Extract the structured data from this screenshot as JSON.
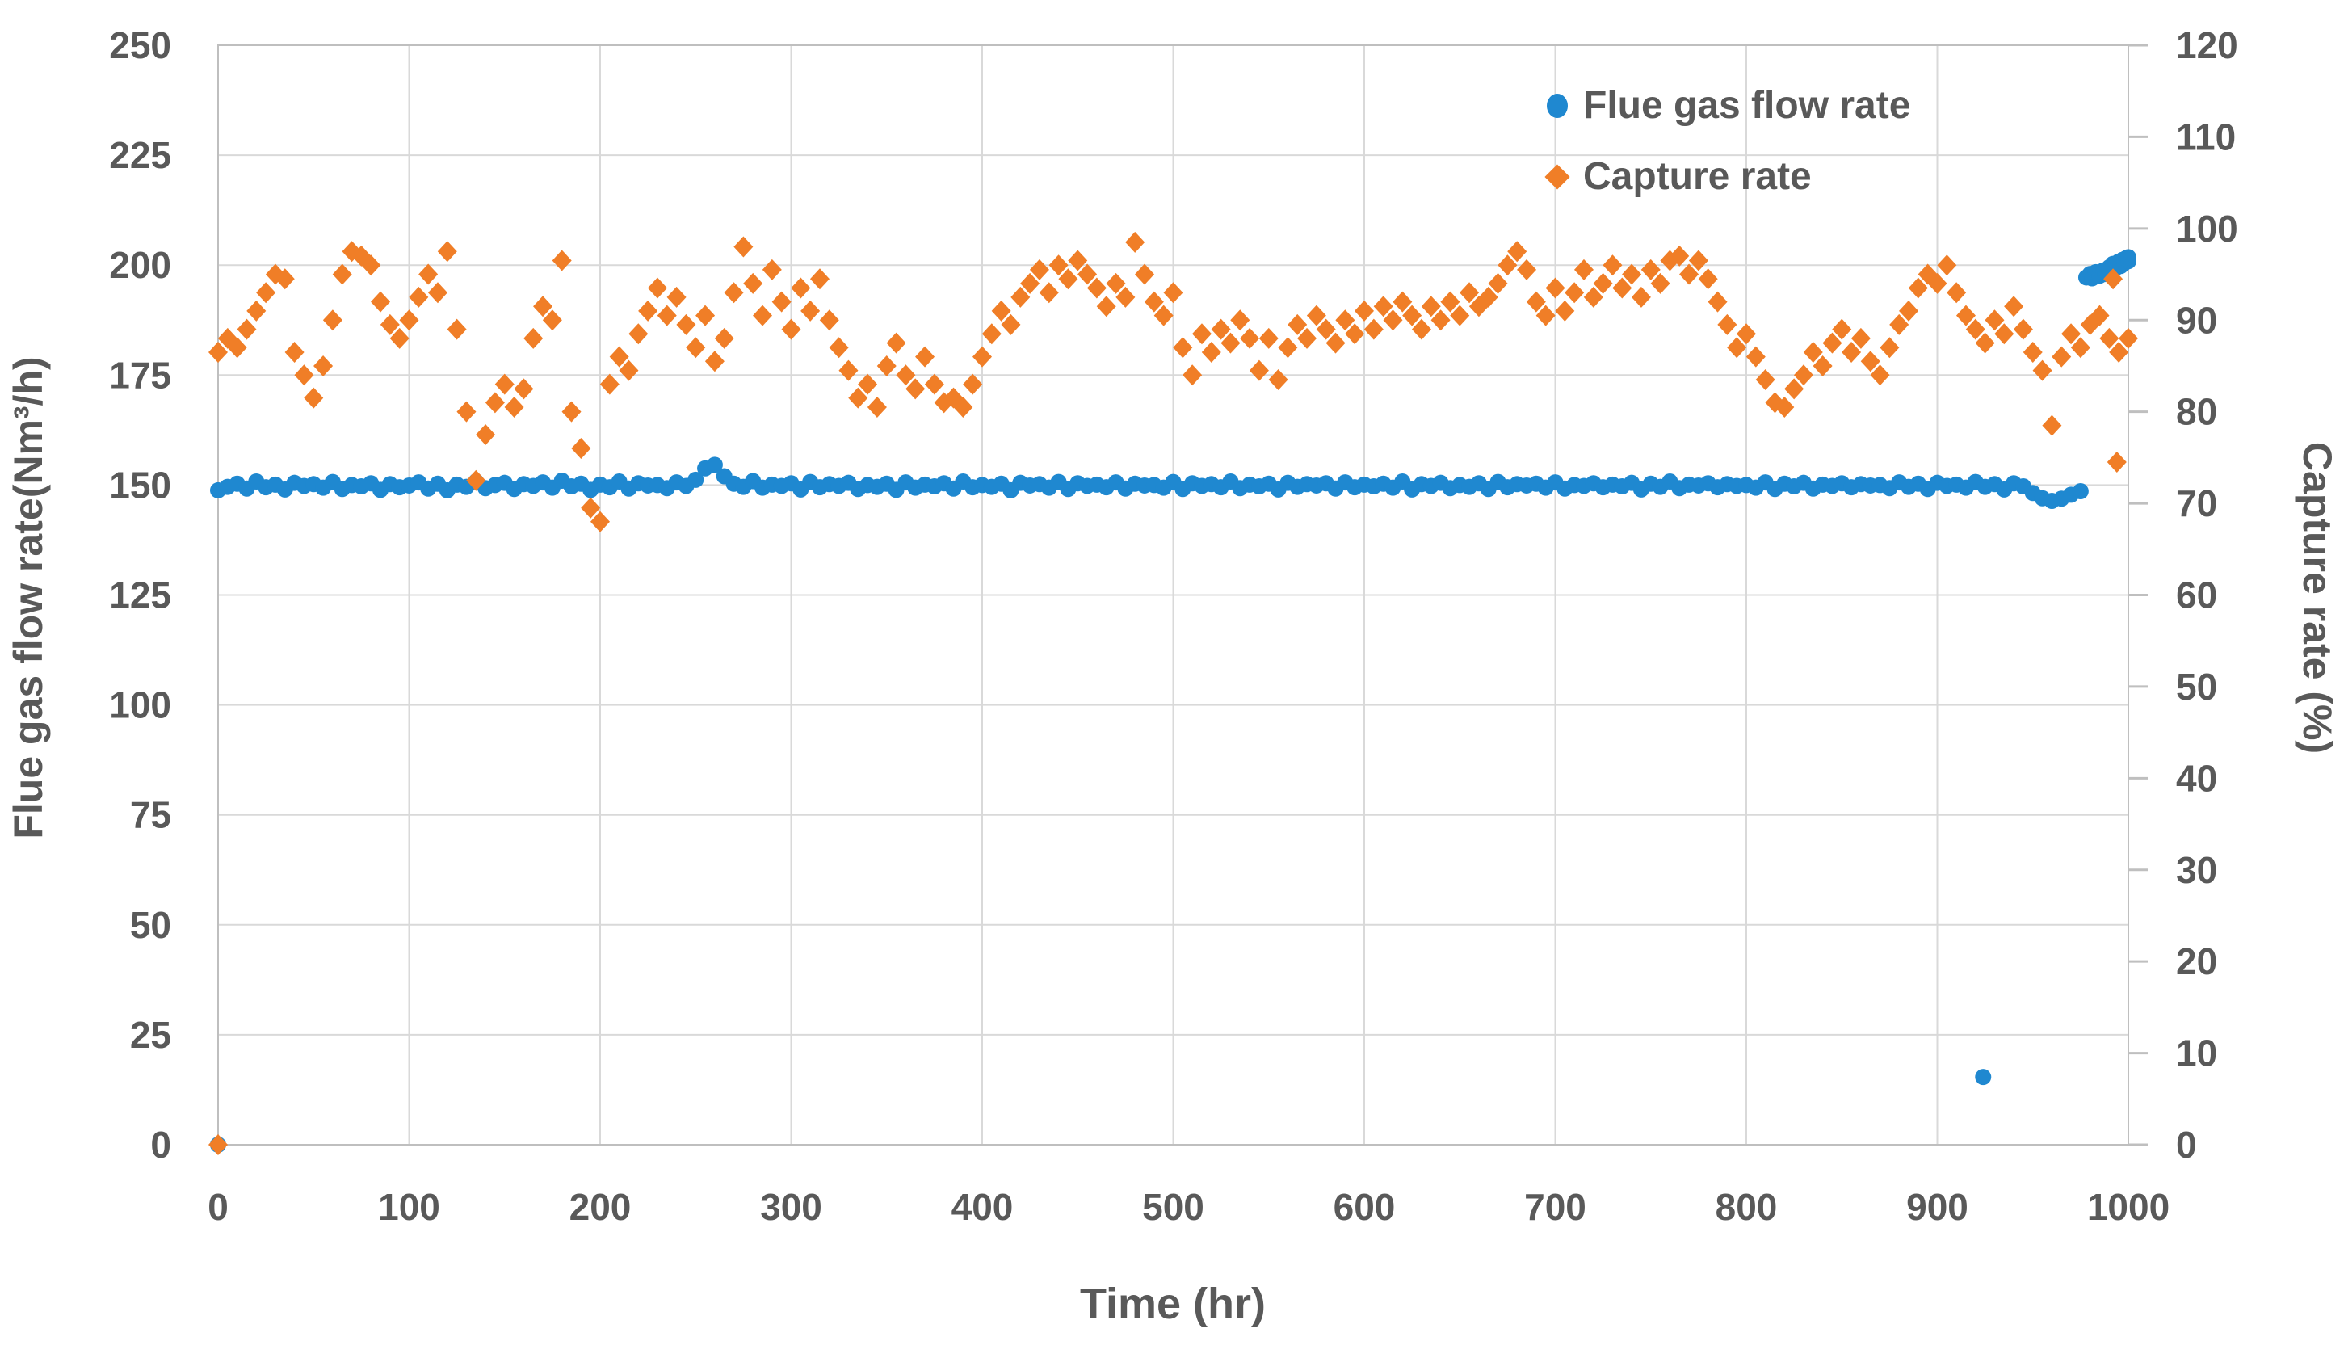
{
  "figure": {
    "background": "#FFFFFF",
    "text_color": "#595959",
    "grid_color": "#D9D9D9",
    "border_color": "#BFBFBF",
    "blue": "#1F88D0",
    "orange": "#F07E27"
  },
  "legend": {
    "position": "top-right-inside"
  },
  "chart_data": {
    "type": "scatter",
    "title": "",
    "xlabel": "Time (hr)",
    "ylabel_left": "Flue gas flow rate(Nm³/h)",
    "ylabel_right": "Capture rate (%)",
    "grid": true,
    "x_axis": {
      "min": 0,
      "max": 1000,
      "tick_step": 100,
      "ticks": [
        "0",
        "100",
        "200",
        "300",
        "400",
        "500",
        "600",
        "700",
        "800",
        "900",
        "1000"
      ]
    },
    "y_left": {
      "min": 0,
      "max": 250,
      "tick_step": 25,
      "ticks": [
        "0",
        "25",
        "50",
        "75",
        "100",
        "125",
        "150",
        "175",
        "200",
        "225",
        "250"
      ]
    },
    "y_right": {
      "min": 0,
      "max": 120,
      "tick_step": 10,
      "ticks": [
        "0",
        "10",
        "20",
        "30",
        "40",
        "50",
        "60",
        "70",
        "80",
        "90",
        "100",
        "110",
        "120"
      ]
    },
    "series": [
      {
        "name": "Flue gas flow rate",
        "axis": "left",
        "marker": "circle",
        "color": "#1F88D0",
        "x_start": 0,
        "x_step": 5,
        "values": [
          148.8,
          149.6,
          150.3,
          149.2,
          150.8,
          149.5,
          150.1,
          149.0,
          150.5,
          149.8,
          150.2,
          149.4,
          150.7,
          149.1,
          150.0,
          149.7,
          150.4,
          148.9,
          150.2,
          149.5,
          149.9,
          150.6,
          149.2,
          150.3,
          148.8,
          150.1,
          149.6,
          150.8,
          149.3,
          150.0,
          150.5,
          149.1,
          150.2,
          149.8,
          150.6,
          149.4,
          151.0,
          149.7,
          150.3,
          148.9,
          150.1,
          149.5,
          150.8,
          149.2,
          150.4,
          149.9,
          150.0,
          149.3,
          150.6,
          149.8,
          151.2,
          153.8,
          154.6,
          152.0,
          150.3,
          149.6,
          150.9,
          149.4,
          150.1,
          149.8,
          150.4,
          149.0,
          150.7,
          149.5,
          150.2,
          149.8,
          150.5,
          149.1,
          150.0,
          149.6,
          150.3,
          148.9,
          150.6,
          149.4,
          150.1,
          149.7,
          150.4,
          149.2,
          150.8,
          149.5,
          150.0,
          149.6,
          150.3,
          148.8,
          150.5,
          149.9,
          150.2,
          149.4,
          150.7,
          149.1,
          150.4,
          149.8,
          150.1,
          149.5,
          150.6,
          149.2,
          150.3,
          149.9,
          150.0,
          149.4,
          150.7,
          149.1,
          150.4,
          149.8,
          150.2,
          149.5,
          150.8,
          149.3,
          150.1,
          149.7,
          150.3,
          149.0,
          150.5,
          149.6,
          150.2,
          149.9,
          150.4,
          149.2,
          150.6,
          149.5,
          150.1,
          149.7,
          150.3,
          149.4,
          150.8,
          149.0,
          150.2,
          149.8,
          150.5,
          149.3,
          150.0,
          149.6,
          150.4,
          149.1,
          150.7,
          149.5,
          150.2,
          149.9,
          150.3,
          149.4,
          150.6,
          149.2,
          150.0,
          149.8,
          150.4,
          149.5,
          150.1,
          149.7,
          150.5,
          149.0,
          150.3,
          149.6,
          150.8,
          149.3,
          150.1,
          149.9,
          150.4,
          149.5,
          150.2,
          149.8,
          150.0,
          149.4,
          150.6,
          149.1,
          150.3,
          149.7,
          150.5,
          149.2,
          150.1,
          149.8,
          150.4,
          149.5,
          150.2,
          149.9,
          150.0,
          149.3,
          150.6,
          149.6,
          150.3,
          149.1,
          150.5,
          149.8,
          150.1,
          149.4,
          150.7,
          149.6,
          150.2,
          149.0,
          150.4,
          149.7,
          148.2,
          147.0,
          146.4,
          146.9,
          147.8,
          148.6
        ],
        "extra_points": [
          [
            0,
            0
          ],
          [
            924,
            15.4
          ],
          [
            978,
            197.2
          ],
          [
            980,
            198.0
          ],
          [
            981,
            197.0
          ],
          [
            983,
            198.4
          ],
          [
            985,
            197.6
          ],
          [
            987,
            198.8
          ],
          [
            988,
            198.0
          ],
          [
            990,
            199.5
          ],
          [
            992,
            200.3
          ],
          [
            993,
            199.2
          ],
          [
            995,
            200.8
          ],
          [
            996,
            199.8
          ],
          [
            997,
            201.2
          ],
          [
            998,
            200.5
          ],
          [
            999,
            201.6
          ],
          [
            1000,
            200.9
          ],
          [
            1000,
            201.8
          ]
        ]
      },
      {
        "name": "Capture rate",
        "axis": "right",
        "marker": "diamond",
        "color": "#F07E27",
        "x_start": 0,
        "x_step": 5,
        "values": [
          86.5,
          88.0,
          87.0,
          89.0,
          91.0,
          93.0,
          95.0,
          94.5,
          86.5,
          84.0,
          81.5,
          85.0,
          90.0,
          95.0,
          97.5,
          97.0,
          96.0,
          92.0,
          89.5,
          88.0,
          90.0,
          92.5,
          95.0,
          93.0,
          97.5,
          89.0,
          80.0,
          72.5,
          77.5,
          81.0,
          83.0,
          80.5,
          82.5,
          88.0,
          91.5,
          90.0,
          96.5,
          80.0,
          76.0,
          69.5,
          68.0,
          83.0,
          86.0,
          84.5,
          88.5,
          91.0,
          93.5,
          90.5,
          92.5,
          89.5,
          87.0,
          90.5,
          85.5,
          88.0,
          93.0,
          98.0,
          94.0,
          90.5,
          95.5,
          92.0,
          89.0,
          93.5,
          91.0,
          94.5,
          90.0,
          87.0,
          84.5,
          81.5,
          83.0,
          80.5,
          85.0,
          87.5,
          84.0,
          82.5,
          86.0,
          83.0,
          81.0,
          81.5,
          80.5,
          83.0,
          86.0,
          88.5,
          91.0,
          89.5,
          92.5,
          94.0,
          95.5,
          93.0,
          96.0,
          94.5,
          96.5,
          95.0,
          93.5,
          91.5,
          94.0,
          92.5,
          98.5,
          95.0,
          92.0,
          90.5,
          93.0,
          87.0,
          84.0,
          88.5,
          86.5,
          89.0,
          87.5,
          90.0,
          88.0,
          84.5,
          88.0,
          83.5,
          87.0,
          89.5,
          88.0,
          90.5,
          89.0,
          87.5,
          90.0,
          88.5,
          91.0,
          89.0,
          91.5,
          90.0,
          92.0,
          90.5,
          89.0,
          91.5,
          90.0,
          92.0,
          90.5,
          93.0,
          91.5,
          92.5,
          94.0,
          96.0,
          97.5,
          95.5,
          92.0,
          90.5,
          93.5,
          91.0,
          93.0,
          95.5,
          92.5,
          94.0,
          96.0,
          93.5,
          95.0,
          92.5,
          95.5,
          94.0,
          96.5,
          97.0,
          95.0,
          96.5,
          94.5,
          92.0,
          89.5,
          87.0,
          88.5,
          86.0,
          83.5,
          81.0,
          80.5,
          82.5,
          84.0,
          86.5,
          85.0,
          87.5,
          89.0,
          86.5,
          88.0,
          85.5,
          84.0,
          87.0,
          89.5,
          91.0,
          93.5,
          95.0,
          94.0,
          96.0,
          93.0,
          90.5,
          89.0,
          87.5,
          90.0,
          88.5,
          91.5,
          89.0,
          86.5,
          84.5,
          78.5,
          86.0,
          88.5,
          87.0,
          89.5,
          90.5,
          88.0,
          86.5,
          88.0
        ],
        "extra_points": [
          [
            0,
            0
          ],
          [
            992,
            94.5
          ],
          [
            994,
            74.5
          ]
        ]
      }
    ]
  }
}
